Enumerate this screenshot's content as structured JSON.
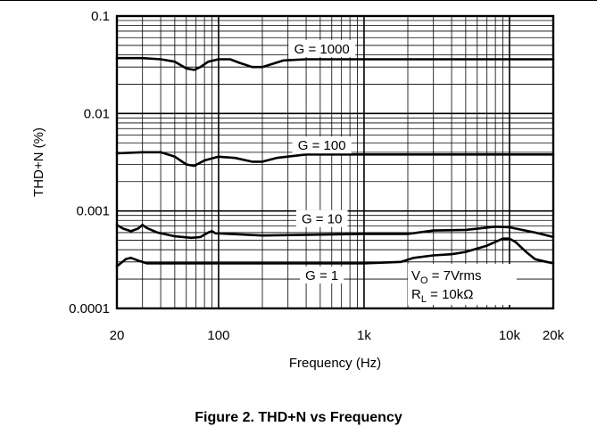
{
  "caption": "Figure 2. THD+N vs Frequency",
  "chart_data": {
    "type": "line",
    "title": "",
    "xlabel": "Frequency (Hz)",
    "ylabel": "THD+N (%)",
    "xscale": "log",
    "yscale": "log",
    "xlim": [
      20,
      20000
    ],
    "ylim": [
      0.0001,
      0.1
    ],
    "grid": true,
    "x_tick_labels": [
      {
        "value": 20,
        "label": "20"
      },
      {
        "value": 100,
        "label": "100"
      },
      {
        "value": 1000,
        "label": "1k"
      },
      {
        "value": 10000,
        "label": "10k"
      },
      {
        "value": 20000,
        "label": "20k"
      }
    ],
    "y_tick_labels": [
      {
        "value": 0.1,
        "label": "0.1"
      },
      {
        "value": 0.01,
        "label": "0.01"
      },
      {
        "value": 0.001,
        "label": "0.001"
      },
      {
        "value": 0.0001,
        "label": "0.0001"
      }
    ],
    "annotations": {
      "vo_main": "V",
      "vo_sub": "O",
      "vo_rest": " = 7Vrms",
      "rl_main": "R",
      "rl_sub": "L",
      "rl_rest": " = 10kΩ"
    },
    "series": [
      {
        "name": "G = 1000",
        "label_at": [
          300,
          0.045
        ],
        "points": [
          [
            20,
            0.037
          ],
          [
            30,
            0.037
          ],
          [
            40,
            0.036
          ],
          [
            50,
            0.034
          ],
          [
            60,
            0.029
          ],
          [
            68,
            0.028
          ],
          [
            75,
            0.03
          ],
          [
            85,
            0.034
          ],
          [
            100,
            0.036
          ],
          [
            120,
            0.036
          ],
          [
            140,
            0.033
          ],
          [
            170,
            0.03
          ],
          [
            200,
            0.03
          ],
          [
            230,
            0.032
          ],
          [
            280,
            0.035
          ],
          [
            400,
            0.036
          ],
          [
            700,
            0.036
          ],
          [
            1000,
            0.036
          ],
          [
            2000,
            0.036
          ],
          [
            5000,
            0.036
          ],
          [
            10000,
            0.036
          ],
          [
            15000,
            0.036
          ],
          [
            20000,
            0.036
          ]
        ]
      },
      {
        "name": "G = 100",
        "label_at": [
          300,
          0.0046
        ],
        "points": [
          [
            20,
            0.0039
          ],
          [
            30,
            0.004
          ],
          [
            40,
            0.004
          ],
          [
            50,
            0.0036
          ],
          [
            60,
            0.003
          ],
          [
            68,
            0.0029
          ],
          [
            80,
            0.0033
          ],
          [
            100,
            0.0036
          ],
          [
            130,
            0.0035
          ],
          [
            170,
            0.0032
          ],
          [
            200,
            0.0032
          ],
          [
            250,
            0.0035
          ],
          [
            400,
            0.0038
          ],
          [
            1000,
            0.0038
          ],
          [
            5000,
            0.0038
          ],
          [
            20000,
            0.0038
          ]
        ]
      },
      {
        "name": "G = 10",
        "label_at": [
          300,
          0.00081
        ],
        "points": [
          [
            20,
            0.00072
          ],
          [
            22,
            0.00066
          ],
          [
            25,
            0.00062
          ],
          [
            28,
            0.00066
          ],
          [
            30,
            0.00072
          ],
          [
            32,
            0.00067
          ],
          [
            38,
            0.0006
          ],
          [
            50,
            0.00055
          ],
          [
            65,
            0.00053
          ],
          [
            75,
            0.00054
          ],
          [
            85,
            0.0006
          ],
          [
            90,
            0.00062
          ],
          [
            95,
            0.00059
          ],
          [
            120,
            0.00058
          ],
          [
            200,
            0.00056
          ],
          [
            400,
            0.00057
          ],
          [
            1000,
            0.00058
          ],
          [
            2000,
            0.00058
          ],
          [
            3000,
            0.00063
          ],
          [
            5000,
            0.00064
          ],
          [
            8000,
            0.00069
          ],
          [
            10000,
            0.00068
          ],
          [
            15000,
            0.0006
          ],
          [
            20000,
            0.00054
          ]
        ]
      },
      {
        "name": "G = 1",
        "label_at": [
          300,
          0.000213
        ],
        "points": [
          [
            20,
            0.00027
          ],
          [
            23,
            0.00032
          ],
          [
            25,
            0.00033
          ],
          [
            28,
            0.00031
          ],
          [
            32,
            0.00029
          ],
          [
            50,
            0.00029
          ],
          [
            100,
            0.00029
          ],
          [
            500,
            0.00029
          ],
          [
            1000,
            0.00029
          ],
          [
            1800,
            0.0003
          ],
          [
            2200,
            0.00033
          ],
          [
            3000,
            0.00035
          ],
          [
            4000,
            0.00036
          ],
          [
            5000,
            0.00038
          ],
          [
            7000,
            0.00044
          ],
          [
            9000,
            0.00052
          ],
          [
            10000,
            0.00052
          ],
          [
            11000,
            0.00048
          ],
          [
            13000,
            0.00038
          ],
          [
            15000,
            0.00032
          ],
          [
            18000,
            0.0003
          ],
          [
            20000,
            0.00029
          ]
        ]
      }
    ]
  }
}
